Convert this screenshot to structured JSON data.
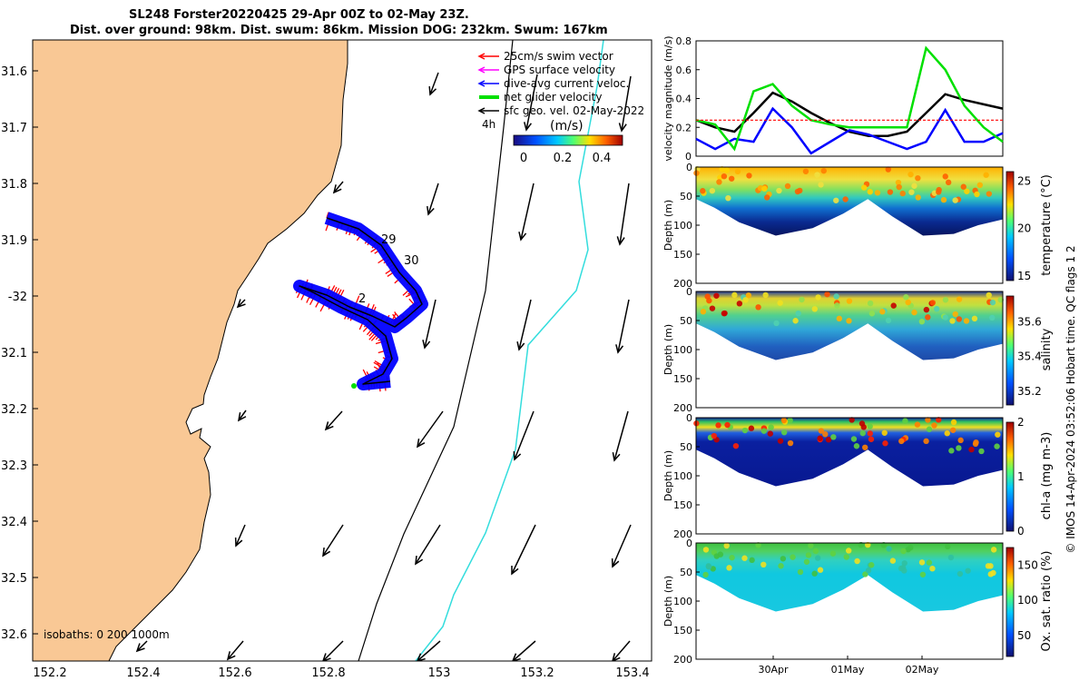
{
  "title": {
    "line1": "SL248 Forster20220425 29-Apr 00Z to 02-May 23Z.",
    "line2": "Dist. over ground: 98km. Dist. swum: 86km. Mission DOG: 232km. Swum: 167km"
  },
  "legend": {
    "items": [
      {
        "label": "25cm/s swim vector",
        "color": "#ff0000"
      },
      {
        "label": "GPS surface velocity",
        "color": "#ff00ff"
      },
      {
        "label": "dive-avg current veloc.",
        "color": "#0000ff"
      },
      {
        "label": "net glider velocity",
        "color": "#00e000"
      },
      {
        "label": "sfc geo. vel. 02-May-2022",
        "color": "#000000"
      }
    ],
    "colorbar_label": "(m/s)",
    "colorbar_side_label": "4h",
    "colorbar_ticks": [
      "0",
      "0.2",
      "0.4"
    ]
  },
  "map": {
    "lon_ticks": [
      "152.2",
      "152.4",
      "152.6",
      "152.8",
      "153",
      "153.2",
      "153.4"
    ],
    "lat_ticks": [
      "31.6",
      "31.7",
      "31.8",
      "31.9",
      "-32",
      "32.1",
      "32.2",
      "32.3",
      "32.4",
      "32.5",
      "32.6"
    ],
    "day_labels": [
      "29",
      "30",
      "2"
    ],
    "isobaths_label": "isobaths: 0   200  1000m",
    "land_color": "#f9c895",
    "track_color": "#0000ff",
    "swim_color": "#ff0000"
  },
  "chart_data": [
    {
      "type": "line",
      "ylabel": "velocity magnitude (m/s)",
      "ylim": [
        0,
        0.8
      ],
      "yticks": [
        "0",
        "0.2",
        "0.4",
        "0.6",
        "0.8"
      ],
      "x": [
        0,
        0.25,
        0.5,
        0.75,
        1,
        1.25,
        1.5,
        1.75,
        2,
        2.25,
        2.5,
        2.75,
        3,
        3.25,
        3.5,
        3.75,
        4
      ],
      "series": [
        {
          "color": "#000000",
          "values": [
            0.25,
            0.2,
            0.17,
            0.3,
            0.44,
            0.38,
            0.3,
            0.23,
            0.17,
            0.14,
            0.14,
            0.17,
            0.3,
            0.43,
            0.39,
            0.36,
            0.33
          ]
        },
        {
          "color": "#0000ff",
          "values": [
            0.12,
            0.05,
            0.12,
            0.1,
            0.33,
            0.2,
            0.02,
            0.1,
            0.18,
            0.15,
            0.1,
            0.05,
            0.1,
            0.32,
            0.1,
            0.1,
            0.16
          ]
        },
        {
          "color": "#00e000",
          "values": [
            0.25,
            0.22,
            0.05,
            0.45,
            0.5,
            0.35,
            0.25,
            0.22,
            0.2,
            0.2,
            0.2,
            0.2,
            0.75,
            0.6,
            0.35,
            0.2,
            0.1
          ]
        },
        {
          "color": "#ff0000",
          "values": [
            0.25,
            0.25,
            0.25,
            0.25,
            0.25,
            0.25,
            0.25,
            0.25,
            0.25,
            0.25,
            0.25,
            0.25,
            0.25,
            0.25,
            0.25,
            0.25,
            0.25
          ]
        }
      ]
    },
    {
      "type": "heatmap",
      "ylabel": "Depth (m)",
      "colorbar_label": "temperature (°C)",
      "ylim": [
        200,
        0
      ],
      "yticks": [
        "0",
        "50",
        "100",
        "150",
        "200"
      ],
      "colorbar_ticks": [
        "15",
        "20",
        "25"
      ]
    },
    {
      "type": "heatmap",
      "ylabel": "Depth (m)",
      "colorbar_label": "salinity",
      "ylim": [
        200,
        0
      ],
      "yticks": [
        "0",
        "50",
        "100",
        "150",
        "200"
      ],
      "colorbar_ticks": [
        "35.2",
        "35.4",
        "35.6"
      ]
    },
    {
      "type": "heatmap",
      "ylabel": "Depth (m)",
      "colorbar_label": "chl-a (mg m-3)",
      "ylim": [
        200,
        0
      ],
      "yticks": [
        "0",
        "50",
        "100",
        "150",
        "200"
      ],
      "colorbar_ticks": [
        "0",
        "1",
        "2"
      ]
    },
    {
      "type": "heatmap",
      "ylabel": "Depth (m)",
      "colorbar_label": "Ox. sat. ratio (%)",
      "ylim": [
        200,
        0
      ],
      "yticks": [
        "0",
        "50",
        "100",
        "150",
        "200"
      ],
      "colorbar_ticks": [
        "50",
        "100",
        "150"
      ],
      "xticks": [
        "30Apr",
        "01May",
        "02May"
      ]
    }
  ],
  "copyright": "© IMOS 14-Apr-2024 03:52:06 Hobart time. QC flags 1  2"
}
